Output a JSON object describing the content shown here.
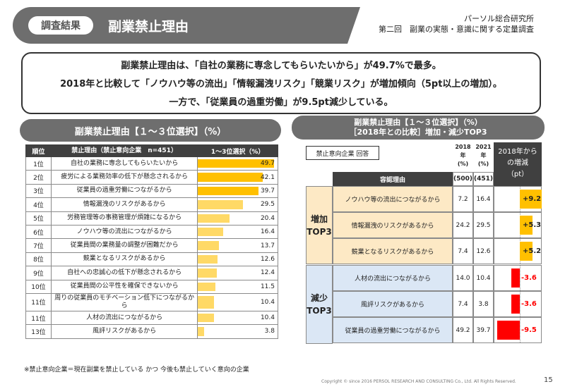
{
  "header": {
    "tag": "調査結果",
    "title": "副業禁止理由",
    "org": "パーソル総合研究所",
    "survey": "第二回　副業の実態・意識に関する定量調査"
  },
  "summary": {
    "line1": "副業禁止理由は、「自社の業務に専念してもらいたいから」が49.7%で最多。",
    "line2": "2018年と比較して「ノウハウ等の流出」「情報漏洩リスク」「競業リスク」が増加傾向（5pt以上の増加）。",
    "line3": "一方で、「従業員の過重労働」が9.5pt減少している。"
  },
  "left": {
    "title": "副業禁止理由【１～３位選択】（%）",
    "col_rank": "順位",
    "col_reason": "禁止理由（禁止意向企業　n=451）",
    "col_value": "1～3位選択（%）",
    "rows": [
      {
        "rank": "1位",
        "reason": "自社の業務に専念してもらいたいから",
        "value": "49.7",
        "pct": 49.7
      },
      {
        "rank": "2位",
        "reason": "疲労による業務効率の低下が懸念されるから",
        "value": "42.1",
        "pct": 42.1
      },
      {
        "rank": "3位",
        "reason": "従業員の過重労働につながるから",
        "value": "39.7",
        "pct": 39.7
      },
      {
        "rank": "4位",
        "reason": "情報漏洩のリスクがあるから",
        "value": "29.5",
        "pct": 29.5
      },
      {
        "rank": "5位",
        "reason": "労務管理等の事務管理が煩雑になるから",
        "value": "20.4",
        "pct": 20.4
      },
      {
        "rank": "6位",
        "reason": "ノウハウ等の流出につながるから",
        "value": "16.4",
        "pct": 16.4
      },
      {
        "rank": "7位",
        "reason": "従業員間の業務量の調整が困難だから",
        "value": "13.7",
        "pct": 13.7
      },
      {
        "rank": "8位",
        "reason": "競業となるリスクがあるから",
        "value": "12.6",
        "pct": 12.6
      },
      {
        "rank": "9位",
        "reason": "自社への忠誠心の低下が懸念されるから",
        "value": "12.4",
        "pct": 12.4
      },
      {
        "rank": "10位",
        "reason": "従業員間の公平性を確保できないから",
        "value": "11.5",
        "pct": 11.5
      },
      {
        "rank": "11位",
        "reason": "周りの従業員のモチベーション低下につながるから",
        "value": "10.4",
        "pct": 10.4
      },
      {
        "rank": "11位",
        "reason": "人材の流出につながるから",
        "value": "10.4",
        "pct": 10.4
      },
      {
        "rank": "13位",
        "reason": "風評リスクがあるから",
        "value": "3.8",
        "pct": 3.8
      }
    ],
    "footnote": "※禁止意向企業＝現在副業を禁止している かつ 今後も禁止していく意向の企業"
  },
  "right": {
    "title_line1": "副業禁止理由【１～３位選択】（%）",
    "title_line2": "［2018年との比較］増加・減少TOP3",
    "respondent": "禁止意向企業 回答",
    "col_2018": "2018\n年\n(%)",
    "col_2021": "2021\n年\n(%)",
    "col_diff": "2018年から\nの増減\n（pt）",
    "reason_header": "容認理由",
    "n_2018": "(500)",
    "n_2021": "(451)",
    "group_up": "増加\nTOP3",
    "group_down": "減少\nTOP3",
    "up_rows": [
      {
        "reason": "ノウハウ等の流出につながるから",
        "y2018": "7.2",
        "y2021": "16.4",
        "diff": "+9.2",
        "d": 9.2
      },
      {
        "reason": "情報漏洩のリスクがあるから",
        "y2018": "24.2",
        "y2021": "29.5",
        "diff": "+5.3",
        "d": 5.3
      },
      {
        "reason": "競業となるリスクがあるから",
        "y2018": "7.4",
        "y2021": "12.6",
        "diff": "+5.2",
        "d": 5.2
      }
    ],
    "down_rows": [
      {
        "reason": "人材の流出につながるから",
        "y2018": "14.0",
        "y2021": "10.4",
        "diff": "-3.6",
        "d": -3.6
      },
      {
        "reason": "風評リスクがあるから",
        "y2018": "7.4",
        "y2021": "3.8",
        "diff": "-3.6",
        "d": -3.6
      },
      {
        "reason": "従業員の過重労働につながるから",
        "y2018": "49.2",
        "y2021": "39.7",
        "diff": "-9.5",
        "d": -9.5
      }
    ]
  },
  "footer": {
    "copyright": "Copyright © since 2016 PERSOL RESEARCH AND CONSULTING Co., Ltd. All Rights Reserved.",
    "page": "15"
  },
  "colors": {
    "bar": "#ffc000",
    "negative": "#ff0000",
    "header_gray": "#6e6e6e"
  }
}
